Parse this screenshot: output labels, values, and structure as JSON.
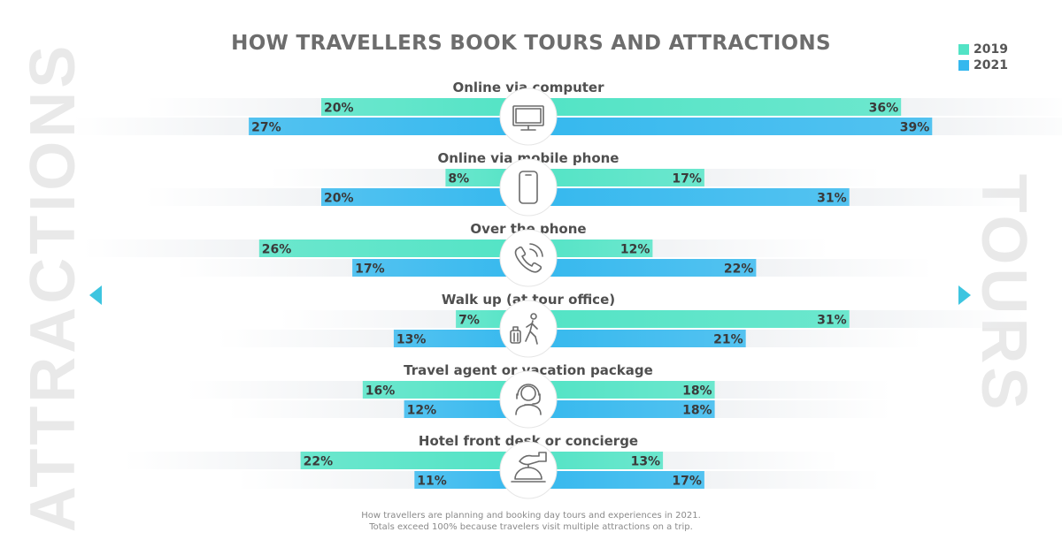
{
  "colors": {
    "c2019": "#52e3c5",
    "c2021": "#35b8ee",
    "tail": "#f1f3f5"
  },
  "side_labels": {
    "left": "ATTRACTIONS",
    "right": "TOURS"
  },
  "footnote": {
    "line1": "How travellers are planning and booking day tours and experiences in 2021.",
    "line2": "Totals exceed 100% because travelers visit multiple attractions on a trip."
  },
  "chart_data": {
    "type": "bar",
    "title": "HOW TRAVELLERS BOOK TOURS AND ATTRACTIONS",
    "legend": [
      {
        "name": "2019",
        "color": "#52e3c5"
      },
      {
        "name": "2021",
        "color": "#35b8ee"
      }
    ],
    "legend_position": "top-right",
    "left_group": "ATTRACTIONS",
    "right_group": "TOURS",
    "categories": [
      {
        "label": "Online via computer",
        "icon": "computer-monitor-icon",
        "left": {
          "2019": 20,
          "2021": 27
        },
        "right": {
          "2019": 36,
          "2021": 39
        }
      },
      {
        "label": "Online via mobile phone",
        "icon": "mobile-phone-icon",
        "left": {
          "2019": 8,
          "2021": 20
        },
        "right": {
          "2019": 17,
          "2021": 31
        }
      },
      {
        "label": "Over the phone",
        "icon": "phone-call-icon",
        "left": {
          "2019": 26,
          "2021": 17
        },
        "right": {
          "2019": 12,
          "2021": 22
        }
      },
      {
        "label": "Walk up (at tour office)",
        "icon": "walking-traveller-icon",
        "left": {
          "2019": 7,
          "2021": 13
        },
        "right": {
          "2019": 31,
          "2021": 21
        }
      },
      {
        "label": "Travel agent or vacation package",
        "icon": "travel-agent-headset-icon",
        "left": {
          "2019": 16,
          "2021": 12
        },
        "right": {
          "2019": 18,
          "2021": 18
        }
      },
      {
        "label": "Hotel front desk or concierge",
        "icon": "reception-bell-icon",
        "left": {
          "2019": 22,
          "2021": 11
        },
        "right": {
          "2019": 13,
          "2021": 17
        }
      }
    ]
  }
}
